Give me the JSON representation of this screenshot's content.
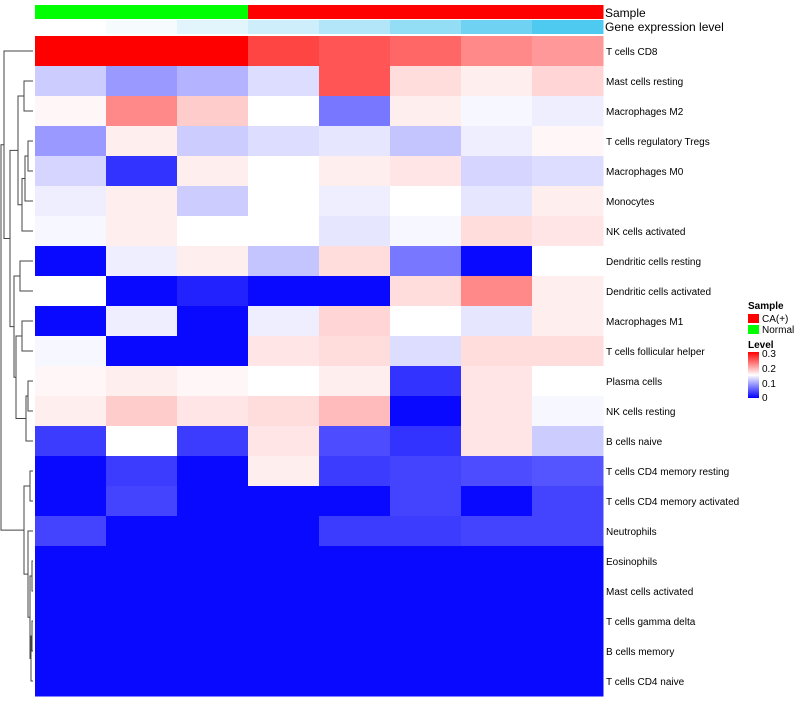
{
  "chart_data": {
    "type": "heatmap",
    "title": "",
    "annotation_labels": {
      "sample": "Sample",
      "gene": "Gene expression level"
    },
    "columns": [
      {
        "sample": "Normal",
        "gene_color": "#ffffff"
      },
      {
        "sample": "Normal",
        "gene_color": "#f6fcfe"
      },
      {
        "sample": "Normal",
        "gene_color": "#e3f5fc"
      },
      {
        "sample": "CA(+)",
        "gene_color": "#cdeefa"
      },
      {
        "sample": "CA(+)",
        "gene_color": "#b2e6f8"
      },
      {
        "sample": "CA(+)",
        "gene_color": "#93ddf5"
      },
      {
        "sample": "CA(+)",
        "gene_color": "#6fd2f2"
      },
      {
        "sample": "CA(+)",
        "gene_color": "#4ec9f0"
      }
    ],
    "rows": [
      {
        "label": "T cells CD8",
        "values": [
          0.3,
          0.3,
          0.3,
          0.26,
          0.25,
          0.24,
          0.22,
          0.21
        ]
      },
      {
        "label": "Mast cells resting",
        "values": [
          0.12,
          0.09,
          0.105,
          0.13,
          0.25,
          0.17,
          0.16,
          0.175
        ]
      },
      {
        "label": "Macrophages M2",
        "values": [
          0.155,
          0.22,
          0.18,
          0.15,
          0.07,
          0.16,
          0.145,
          0.14
        ]
      },
      {
        "label": "T cells regulatory  Tregs",
        "values": [
          0.09,
          0.16,
          0.12,
          0.13,
          0.135,
          0.115,
          0.14,
          0.155
        ]
      },
      {
        "label": "Macrophages M0",
        "values": [
          0.125,
          0.03,
          0.16,
          0.15,
          0.16,
          0.165,
          0.125,
          0.13
        ]
      },
      {
        "label": "Monocytes",
        "values": [
          0.14,
          0.16,
          0.12,
          0.15,
          0.14,
          0.15,
          0.135,
          0.16
        ]
      },
      {
        "label": "NK cells activated",
        "values": [
          0.145,
          0.16,
          0.15,
          0.15,
          0.135,
          0.145,
          0.17,
          0.165
        ]
      },
      {
        "label": "Dendritic cells resting",
        "values": [
          0.005,
          0.14,
          0.16,
          0.115,
          0.17,
          0.07,
          0.005,
          0.15
        ]
      },
      {
        "label": "Dendritic cells activated",
        "values": [
          0.15,
          0.005,
          0.02,
          0.005,
          0.005,
          0.17,
          0.22,
          0.16
        ]
      },
      {
        "label": "Macrophages M1",
        "values": [
          0.005,
          0.14,
          0.005,
          0.14,
          0.175,
          0.15,
          0.135,
          0.16
        ]
      },
      {
        "label": "T cells follicular helper",
        "values": [
          0.145,
          0.005,
          0.005,
          0.165,
          0.17,
          0.13,
          0.17,
          0.17
        ]
      },
      {
        "label": "Plasma cells",
        "values": [
          0.155,
          0.16,
          0.155,
          0.15,
          0.16,
          0.03,
          0.165,
          0.15
        ]
      },
      {
        "label": "NK cells resting",
        "values": [
          0.16,
          0.18,
          0.165,
          0.17,
          0.19,
          0.005,
          0.165,
          0.145
        ]
      },
      {
        "label": "B cells naive",
        "values": [
          0.035,
          0.15,
          0.035,
          0.165,
          0.045,
          0.03,
          0.165,
          0.12
        ]
      },
      {
        "label": "T cells CD4 memory resting",
        "values": [
          0.005,
          0.035,
          0.005,
          0.16,
          0.035,
          0.04,
          0.045,
          0.05
        ]
      },
      {
        "label": "T cells CD4 memory activated",
        "values": [
          0.005,
          0.04,
          0.005,
          0.005,
          0.005,
          0.04,
          0.005,
          0.04
        ]
      },
      {
        "label": "Neutrophils",
        "values": [
          0.04,
          0.005,
          0.005,
          0.005,
          0.035,
          0.035,
          0.04,
          0.04
        ]
      },
      {
        "label": "Eosinophils",
        "values": [
          0.005,
          0.005,
          0.005,
          0.005,
          0.005,
          0.005,
          0.005,
          0.005
        ]
      },
      {
        "label": "Mast cells activated",
        "values": [
          0.005,
          0.005,
          0.005,
          0.005,
          0.005,
          0.005,
          0.005,
          0.005
        ]
      },
      {
        "label": "T cells gamma delta",
        "values": [
          0.005,
          0.005,
          0.005,
          0.005,
          0.005,
          0.005,
          0.005,
          0.005
        ]
      },
      {
        "label": "B cells memory",
        "values": [
          0.005,
          0.005,
          0.005,
          0.005,
          0.005,
          0.005,
          0.005,
          0.005
        ]
      },
      {
        "label": "T cells CD4 naive",
        "values": [
          0.005,
          0.005,
          0.005,
          0.005,
          0.005,
          0.005,
          0.005,
          0.005
        ]
      }
    ],
    "color_scale": {
      "low": "#0000ff",
      "mid": "#ffffff",
      "high": "#ff0000",
      "domain": [
        0,
        0.15,
        0.3
      ]
    },
    "legend": {
      "sample_title": "Sample",
      "sample_items": [
        {
          "label": "CA(+)",
          "color": "#ff0000"
        },
        {
          "label": "Normal",
          "color": "#00ff00"
        }
      ],
      "level_title": "Level",
      "level_ticks": [
        "0.3",
        "0.2",
        "0.1",
        "0"
      ],
      "position": "right"
    }
  }
}
